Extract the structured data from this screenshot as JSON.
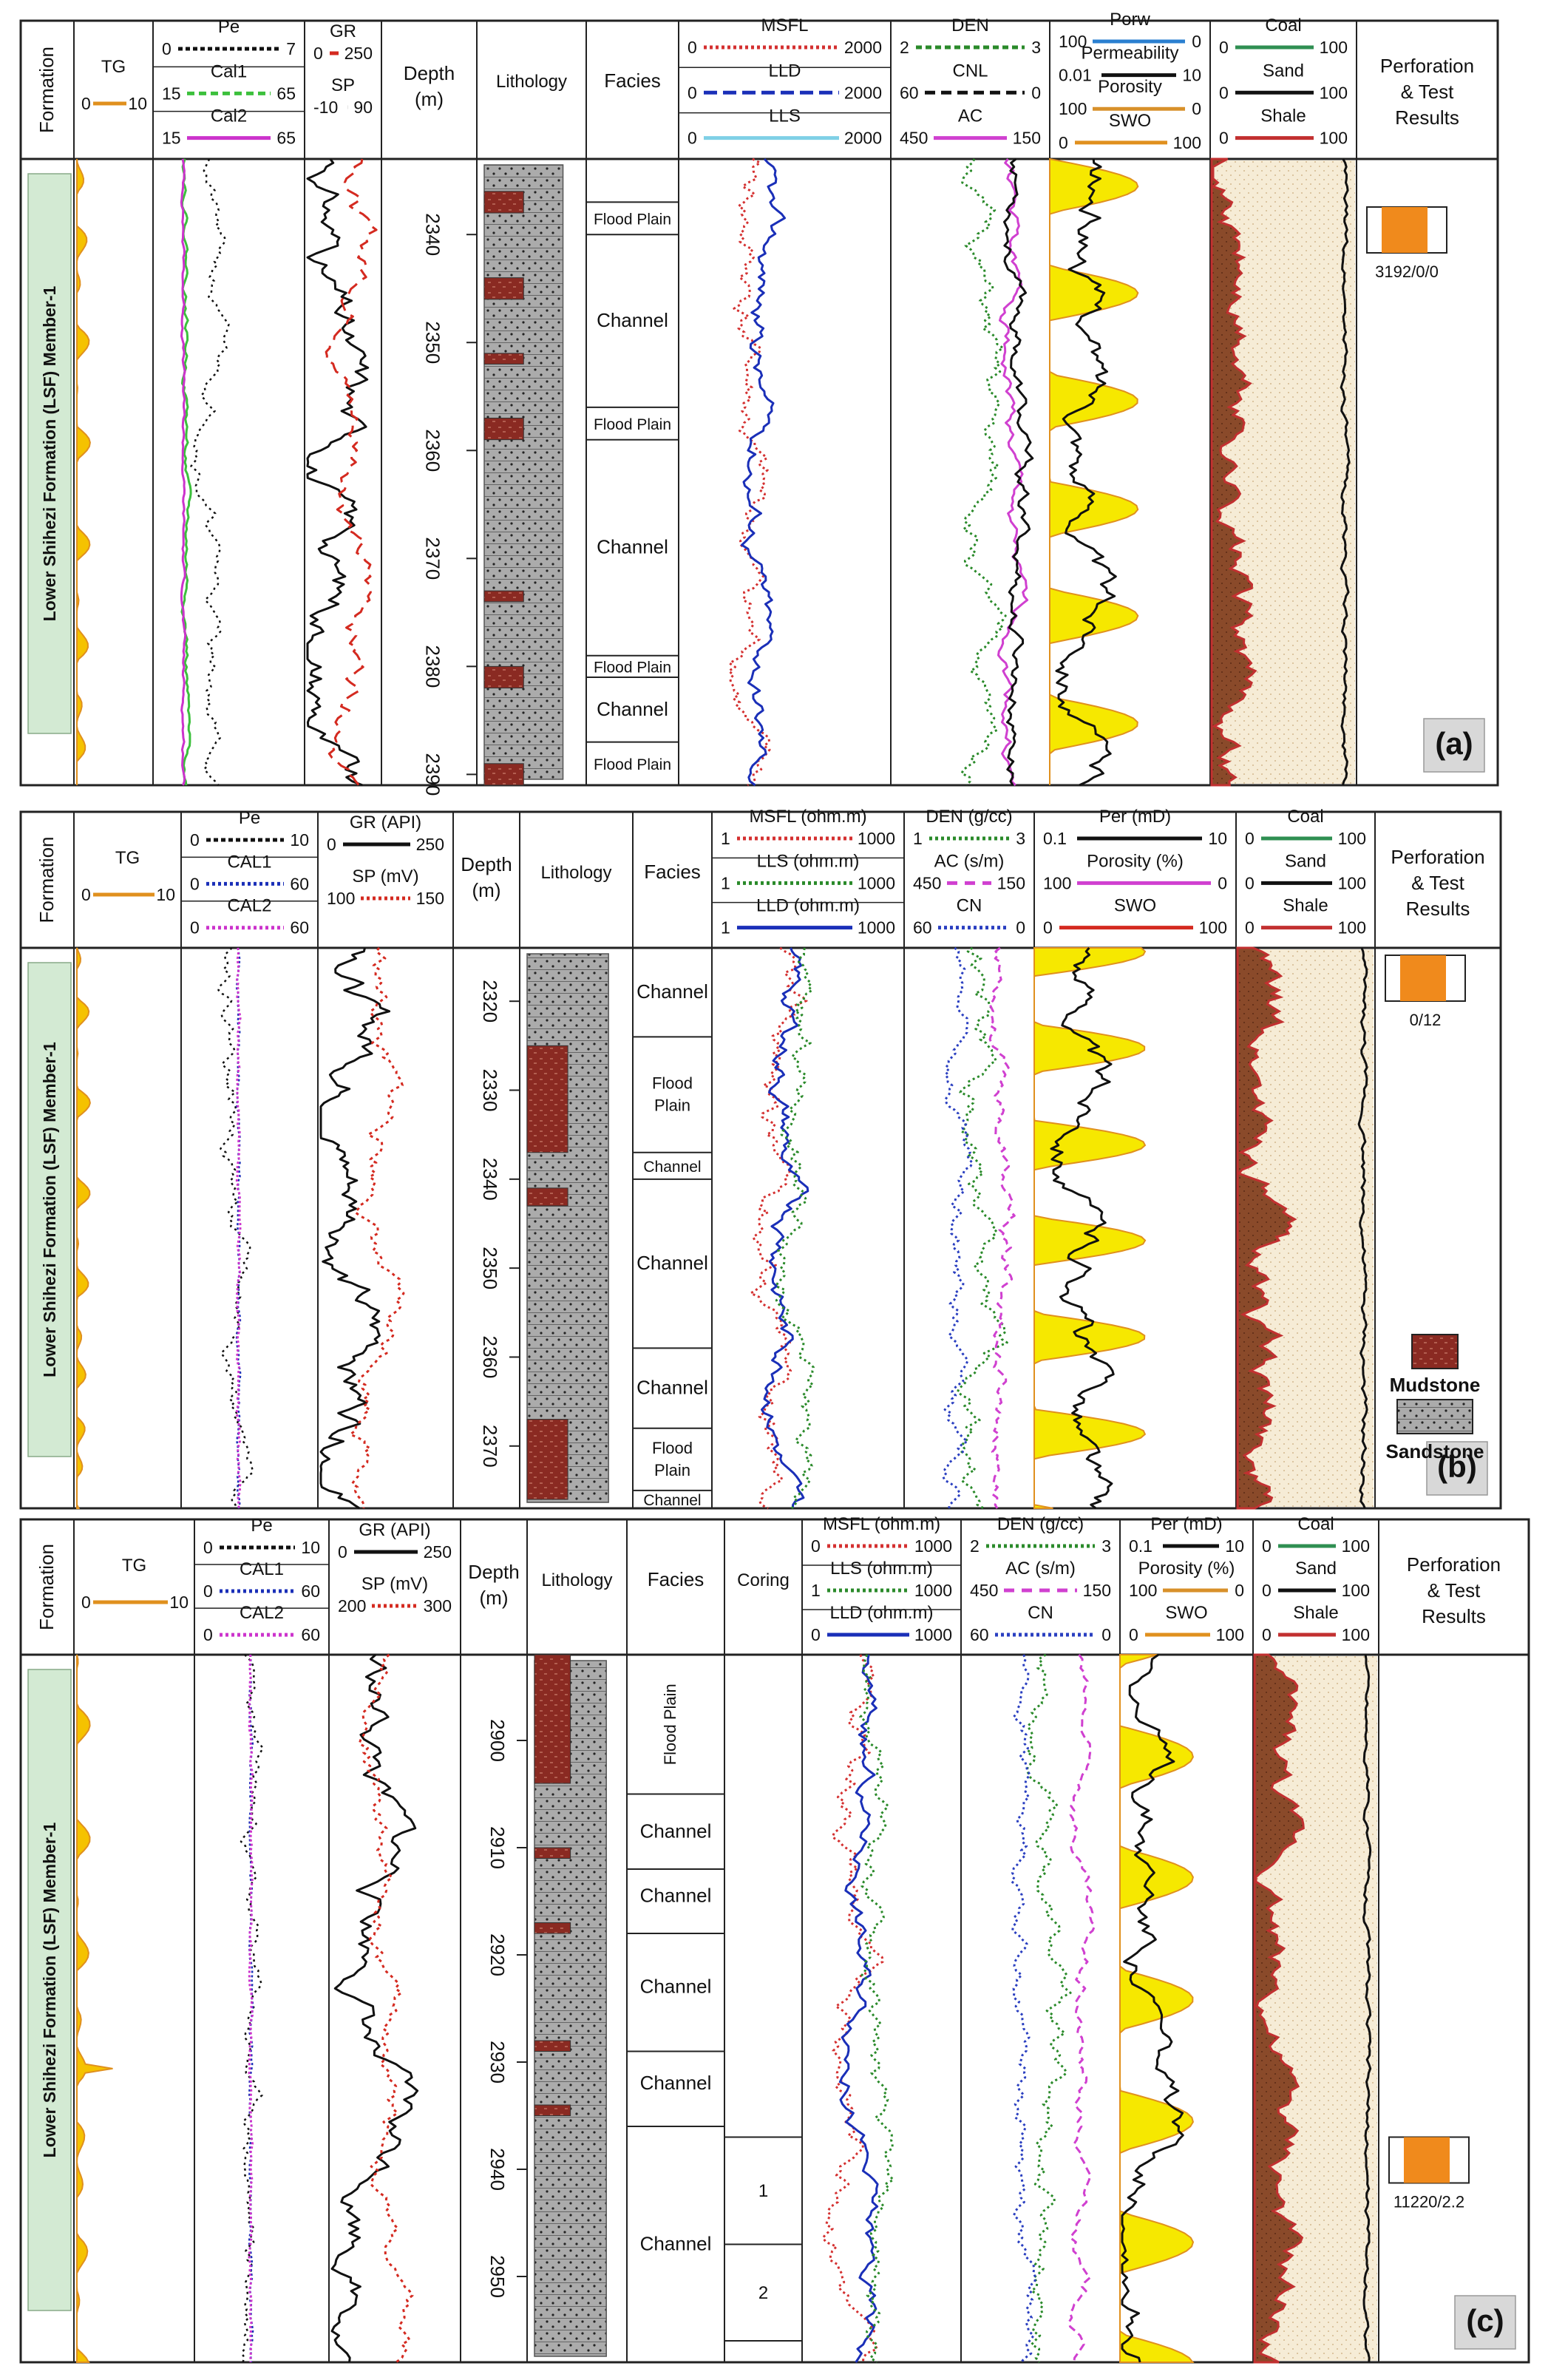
{
  "colors": {
    "frame": "#222222",
    "tg": "#e0901e",
    "tg_fill": "#f5c200",
    "gr": "#d42a20",
    "sp": "#111111",
    "msfl": "#d43030",
    "lld": "#1a2fb8",
    "lls_a": "#7fd0e6",
    "lls_b": "#2a8a2a",
    "den": "#2a8a2a",
    "cnl": "#2a3fc0",
    "ac": "#d040d0",
    "cal1": "#3cc03c",
    "cal2": "#cc33cc",
    "pe": "#111111",
    "porw": "#2a7fd0",
    "perm": "#111111",
    "porosity": "#d8902a",
    "swo": "#e0901e",
    "coal": "#2f8f52",
    "sand": "#111111",
    "shale": "#c23030",
    "shale_fill": "#8a4a2a",
    "sand_fill": "#f6ecd6",
    "formation_bar": "#d3ead3",
    "mud": "#8a2a22",
    "sandstone": "#aaaaaa",
    "orange": "#f08a1c",
    "yellow": "#f6e800"
  },
  "common": {
    "formation_header": "Formation",
    "formation_name": "Lower Shihezi Formation (LSF) Member-1",
    "depth_header": "Depth",
    "depth_unit": "(m)",
    "lithology_header": "Lithology",
    "facies_header": "Facies",
    "coring_header": "Coring",
    "perf_header_1": "Perforation",
    "perf_header_2": "& Test",
    "perf_header_3": "Results"
  },
  "legend": {
    "mudstone": "Mudstone",
    "sandstone": "Sandstone"
  },
  "panels": [
    {
      "id": "a",
      "label": "(a)",
      "depth_ticks": [
        "2340",
        "2350",
        "2360",
        "2370",
        "2380",
        "2390"
      ],
      "depth_range": [
        2333,
        2391
      ],
      "facies": [
        {
          "label": "Flood Plain",
          "from": 2337,
          "to": 2340
        },
        {
          "label": "Channel",
          "from": 2340,
          "to": 2356
        },
        {
          "label": "Flood Plain",
          "from": 2356,
          "to": 2359
        },
        {
          "label": "Channel",
          "from": 2359,
          "to": 2379
        },
        {
          "label": "Flood Plain",
          "from": 2379,
          "to": 2381
        },
        {
          "label": "Channel",
          "from": 2381,
          "to": 2387
        },
        {
          "label": "Flood Plain",
          "from": 2387,
          "to": 2391
        }
      ],
      "perf_result": "3192/0/0",
      "headers": {
        "tg": {
          "name": "TG",
          "min": "0",
          "max": "10"
        },
        "pe": {
          "name": "Pe",
          "min": "0",
          "max": "7"
        },
        "cal1": {
          "name": "Cal1",
          "min": "15",
          "max": "65"
        },
        "cal2": {
          "name": "Cal2",
          "min": "15",
          "max": "65"
        },
        "gr": {
          "name": "GR",
          "min": "0",
          "max": "250"
        },
        "sp": {
          "name": "SP",
          "min": "-10",
          "max": "90"
        },
        "msfl": {
          "name": "MSFL",
          "min": "0",
          "max": "2000"
        },
        "lld": {
          "name": "LLD",
          "min": "0",
          "max": "2000"
        },
        "lls": {
          "name": "LLS",
          "min": "0",
          "max": "2000"
        },
        "den": {
          "name": "DEN",
          "min": "2",
          "max": "3"
        },
        "cnl": {
          "name": "CNL",
          "min": "60",
          "max": "0"
        },
        "ac": {
          "name": "AC",
          "min": "450",
          "max": "150"
        },
        "porw": {
          "name": "Porw",
          "min": "100",
          "max": "0"
        },
        "perm": {
          "name": "Permeability",
          "min": "0.01",
          "max": "10"
        },
        "poro": {
          "name": "Porosity",
          "min": "100",
          "max": "0"
        },
        "swo": {
          "name": "SWO",
          "min": "0",
          "max": "100"
        },
        "coal": {
          "name": "Coal",
          "min": "0",
          "max": "100"
        },
        "sand": {
          "name": "Sand",
          "min": "0",
          "max": "100"
        },
        "shale": {
          "name": "Shale",
          "min": "0",
          "max": "100"
        }
      }
    },
    {
      "id": "b",
      "label": "(b)",
      "depth_ticks": [
        "2320",
        "2330",
        "2340",
        "2350",
        "2360",
        "2370"
      ],
      "depth_range": [
        2314,
        2377
      ],
      "facies": [
        {
          "label": "Channel",
          "from": 2314,
          "to": 2324
        },
        {
          "label": "Flood Plain",
          "from": 2324,
          "to": 2337
        },
        {
          "label": "Channel",
          "from": 2337,
          "to": 2340
        },
        {
          "label": "Channel",
          "from": 2340,
          "to": 2359
        },
        {
          "label": "Channel",
          "from": 2359,
          "to": 2368
        },
        {
          "label": "Flood Plain",
          "from": 2368,
          "to": 2375
        },
        {
          "label": "Channel",
          "from": 2375,
          "to": 2377
        }
      ],
      "perf_result": "0/12",
      "headers": {
        "tg": {
          "name": "TG",
          "min": "0",
          "max": "10"
        },
        "pe": {
          "name": "Pe",
          "min": "0",
          "max": "10"
        },
        "cal1": {
          "name": "CAL1",
          "min": "0",
          "max": "60"
        },
        "cal2": {
          "name": "CAL2",
          "min": "0",
          "max": "60"
        },
        "gr": {
          "name": "GR (API)",
          "min": "0",
          "max": "250"
        },
        "sp": {
          "name": "SP (mV)",
          "min": "100",
          "max": "150"
        },
        "msfl": {
          "name": "MSFL (ohm.m)",
          "min": "1",
          "max": "1000"
        },
        "lls": {
          "name": "LLS (ohm.m)",
          "min": "1",
          "max": "1000"
        },
        "lld": {
          "name": "LLD (ohm.m)",
          "min": "1",
          "max": "1000"
        },
        "den": {
          "name": "DEN (g/cc)",
          "min": "1",
          "max": "3"
        },
        "ac": {
          "name": "AC (s/m)",
          "min": "450",
          "max": "150"
        },
        "cn": {
          "name": "CN",
          "min": "60",
          "max": "0"
        },
        "per": {
          "name": "Per (mD)",
          "min": "0.1",
          "max": "10"
        },
        "poro": {
          "name": "Porosity (%)",
          "min": "100",
          "max": "0"
        },
        "swo": {
          "name": "SWO",
          "min": "0",
          "max": "100"
        },
        "coal": {
          "name": "Coal",
          "min": "0",
          "max": "100"
        },
        "sand": {
          "name": "Sand",
          "min": "0",
          "max": "100"
        },
        "shale": {
          "name": "Shale",
          "min": "0",
          "max": "100"
        }
      }
    },
    {
      "id": "c",
      "label": "(c)",
      "depth_ticks": [
        "2900",
        "2910",
        "2920",
        "2930",
        "2940",
        "2950"
      ],
      "depth_range": [
        2892,
        2958
      ],
      "facies": [
        {
          "label": "Flood Plain",
          "from": 2892,
          "to": 2905
        },
        {
          "label": "Channel",
          "from": 2905,
          "to": 2912
        },
        {
          "label": "Channel",
          "from": 2912,
          "to": 2917
        },
        {
          "label": "Channel",
          "from": 2918,
          "to": 2928
        },
        {
          "label": "Channel",
          "from": 2929,
          "to": 2935
        },
        {
          "label": "Channel",
          "from": 2936,
          "to": 2958
        }
      ],
      "coring": [
        "1",
        "2"
      ],
      "perf_result": "11220/2.2",
      "headers": {
        "tg": {
          "name": "TG",
          "min": "0",
          "max": "10"
        },
        "pe": {
          "name": "Pe",
          "min": "0",
          "max": "10"
        },
        "cal1": {
          "name": "CAL1",
          "min": "0",
          "max": "60"
        },
        "cal2": {
          "name": "CAL2",
          "min": "0",
          "max": "60"
        },
        "gr": {
          "name": "GR (API)",
          "min": "0",
          "max": "250"
        },
        "sp": {
          "name": "SP (mV)",
          "min": "200",
          "max": "300"
        },
        "msfl": {
          "name": "MSFL (ohm.m)",
          "min": "0",
          "max": "1000"
        },
        "lls": {
          "name": "LLS (ohm.m)",
          "min": "1",
          "max": "1000"
        },
        "lld": {
          "name": "LLD (ohm.m)",
          "min": "0",
          "max": "1000"
        },
        "den": {
          "name": "DEN (g/cc)",
          "min": "2",
          "max": "3"
        },
        "ac": {
          "name": "AC (s/m)",
          "min": "450",
          "max": "150"
        },
        "cn": {
          "name": "CN",
          "min": "60",
          "max": "0"
        },
        "per": {
          "name": "Per (mD)",
          "min": "0.1",
          "max": "10"
        },
        "poro": {
          "name": "Porosity (%)",
          "min": "100",
          "max": "0"
        },
        "swo": {
          "name": "SWO",
          "min": "0",
          "max": "100"
        },
        "coal": {
          "name": "Coal",
          "min": "0",
          "max": "100"
        },
        "sand": {
          "name": "Sand",
          "min": "0",
          "max": "100"
        },
        "shale": {
          "name": "Shale",
          "min": "0",
          "max": "100"
        }
      }
    }
  ]
}
